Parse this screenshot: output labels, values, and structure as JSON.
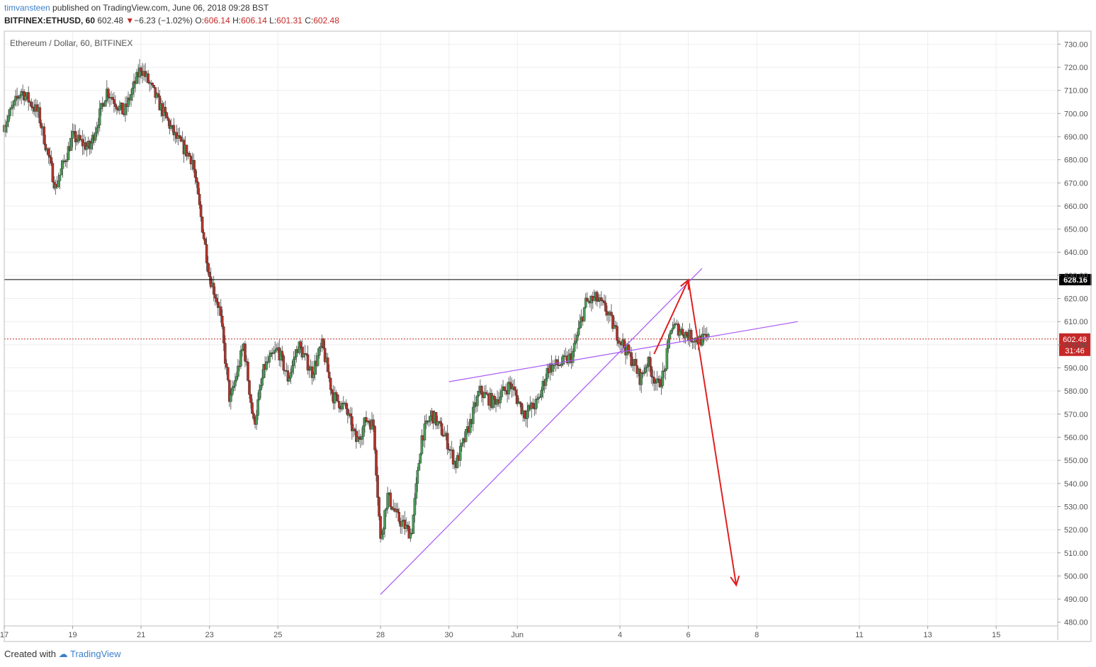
{
  "header": {
    "author": "timvansteen",
    "published_text": "published on TradingView.com, June 06, 2018 09:28 BST",
    "symbol": "BITFINEX:ETHUSD, 60",
    "last": "602.48",
    "arrow": "▼",
    "change": "−6.23 (−1.02%)",
    "o_label": "O:",
    "o_value": "606.14",
    "h_label": "H:",
    "h_value": "606.14",
    "l_label": "L:",
    "l_value": "601.31",
    "c_label": "C:",
    "c_value": "602.48"
  },
  "footer": {
    "created_with": "Created with",
    "brand": "TradingView"
  },
  "colors": {
    "up": "#4a9a57",
    "down": "#b0342a",
    "grid": "#eeeeee",
    "trendline": "#a855f7",
    "arrow": "#e02020",
    "price_line": "#c62828"
  },
  "chart_data": {
    "type": "candlestick",
    "title": "Ethereum / Dollar, 60, BITFINEX",
    "y_axis": {
      "ticks": [
        480,
        490,
        500,
        510,
        520,
        530,
        540,
        550,
        560,
        570,
        580,
        590,
        600,
        610,
        620,
        630,
        640,
        650,
        660,
        670,
        680,
        690,
        700,
        710,
        720,
        730
      ],
      "tick_labels": [
        "480.00",
        "490.00",
        "500.00",
        "510.00",
        "520.00",
        "530.00",
        "540.00",
        "550.00",
        "560.00",
        "570.00",
        "580.00",
        "590.00",
        "600.00",
        "610.00",
        "620.00",
        "630.00",
        "640.00",
        "650.00",
        "660.00",
        "670.00",
        "680.00",
        "690.00",
        "700.00",
        "710.00",
        "720.00",
        "730.00"
      ],
      "range": [
        479,
        735
      ]
    },
    "x_axis": {
      "tick_labels": [
        "17",
        "19",
        "21",
        "23",
        "25",
        "28",
        "30",
        "Jun",
        "4",
        "6",
        "8",
        "11",
        "13",
        "15"
      ],
      "tick_days": [
        0,
        2,
        4,
        6,
        8,
        11,
        13,
        15,
        18,
        20,
        22,
        25,
        27,
        29
      ],
      "range_days": [
        0,
        30.8
      ]
    },
    "price_path_days": [
      0,
      0.5,
      1.0,
      1.5,
      2.0,
      2.5,
      3.0,
      3.5,
      4.0,
      4.5,
      5.0,
      5.5,
      6.0,
      6.3,
      6.6,
      7.0,
      7.3,
      7.6,
      8.0,
      8.3,
      8.6,
      9.0,
      9.3,
      9.6,
      10.0,
      10.3,
      10.6,
      10.8,
      11.0,
      11.2,
      11.5,
      11.9,
      12.2,
      12.5,
      12.9,
      13.2,
      13.6,
      13.9,
      14.3,
      14.8,
      15.2,
      15.6,
      15.9,
      16.3,
      16.6,
      17.0,
      17.3,
      17.6,
      17.9,
      18.1,
      18.4,
      18.6,
      18.8,
      19.1,
      19.3,
      19.5,
      19.7,
      20.0,
      20.3,
      20.6
    ],
    "price_path_values": [
      695,
      710,
      700,
      668,
      690,
      685,
      710,
      700,
      720,
      705,
      690,
      680,
      630,
      615,
      575,
      600,
      565,
      590,
      598,
      585,
      600,
      588,
      600,
      578,
      572,
      558,
      568,
      565,
      515,
      535,
      525,
      518,
      560,
      570,
      560,
      548,
      565,
      580,
      575,
      583,
      570,
      575,
      590,
      592,
      595,
      618,
      620,
      615,
      605,
      600,
      592,
      585,
      593,
      582,
      588,
      608,
      607,
      604,
      602,
      602.48
    ],
    "horizontal_levels": [
      {
        "value": 628.16,
        "label": "628.16"
      },
      {
        "value": 602.48,
        "label": "602.48",
        "countdown": "31:46"
      }
    ],
    "trendlines": [
      {
        "from": [
          11.0,
          492
        ],
        "to": [
          20.4,
          633
        ]
      },
      {
        "from": [
          13.0,
          584
        ],
        "to": [
          23.2,
          610
        ]
      }
    ],
    "arrows": [
      {
        "from": [
          19.0,
          596
        ],
        "to": [
          20.0,
          628
        ]
      },
      {
        "from": [
          20.0,
          628
        ],
        "to": [
          21.4,
          496
        ]
      }
    ]
  }
}
